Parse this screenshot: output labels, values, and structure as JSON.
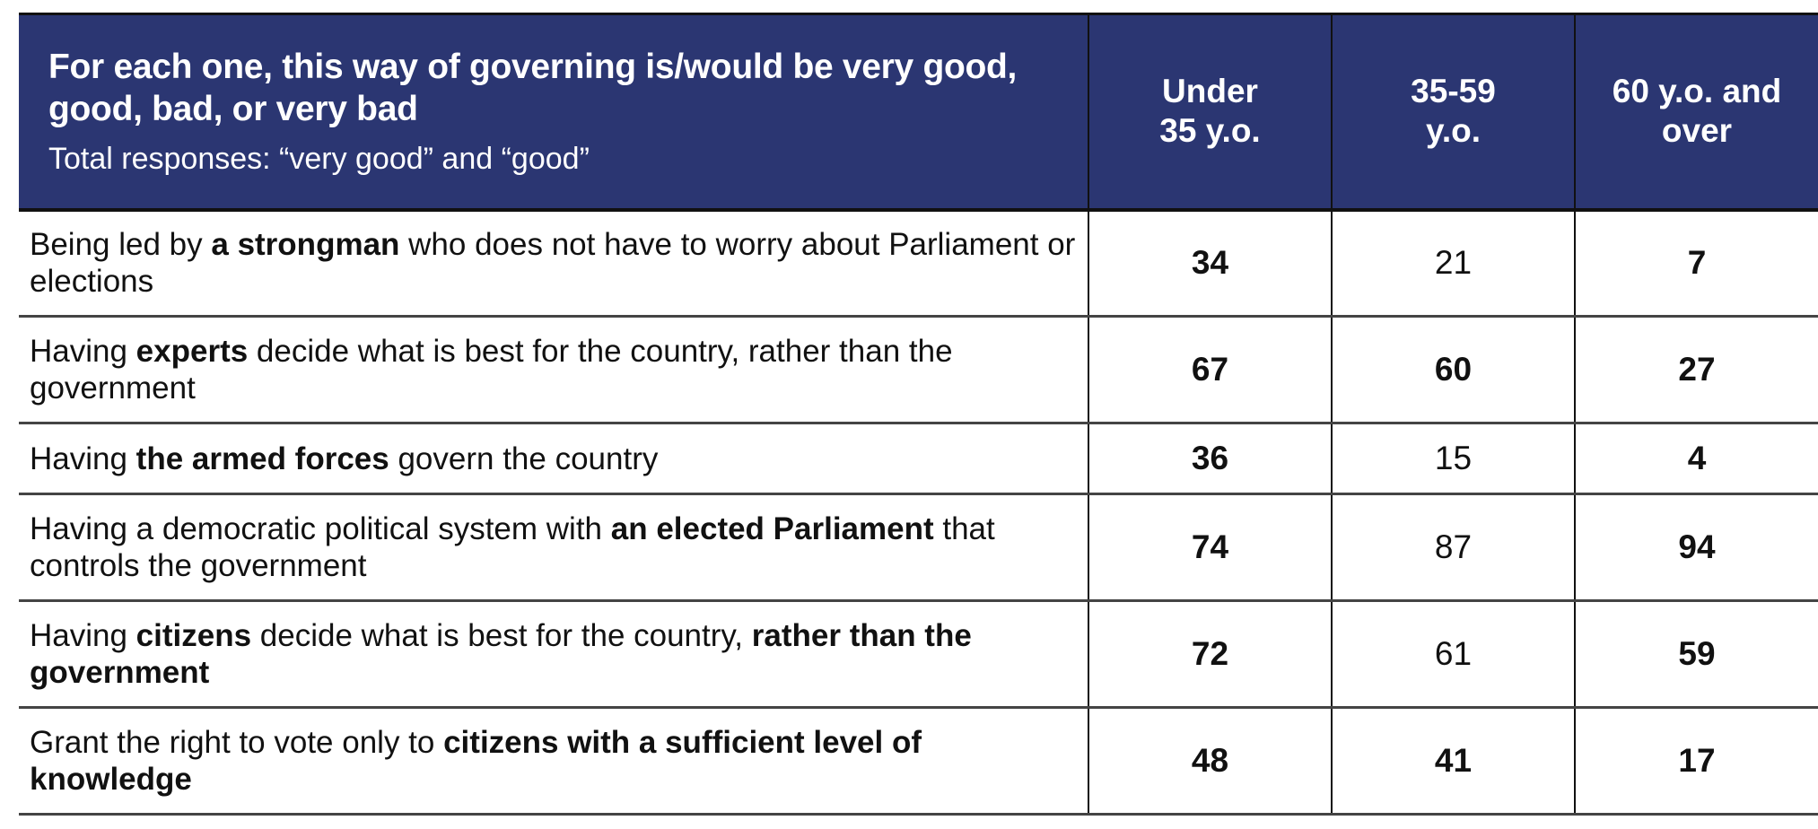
{
  "header": {
    "title": "For each one, this way of governing is/would be very good, good, bad, or very bad",
    "subtitle": "Total responses: “very good” and “good”",
    "columns": [
      "Under 35 y.o.",
      "35-59 y.o.",
      "60 y.o. and over"
    ]
  },
  "rows": [
    {
      "segments": [
        {
          "text": "Being led by ",
          "bold": false
        },
        {
          "text": "a strongman",
          "bold": true
        },
        {
          "text": " who does not have to worry about Parliament or elections",
          "bold": false
        }
      ],
      "values": [
        {
          "v": "34",
          "bold": true
        },
        {
          "v": "21",
          "bold": false
        },
        {
          "v": "7",
          "bold": true
        }
      ]
    },
    {
      "segments": [
        {
          "text": "Having ",
          "bold": false
        },
        {
          "text": "experts",
          "bold": true
        },
        {
          "text": " decide what is best for the country, rather than the government",
          "bold": false
        }
      ],
      "values": [
        {
          "v": "67",
          "bold": true
        },
        {
          "v": "60",
          "bold": true
        },
        {
          "v": "27",
          "bold": true
        }
      ]
    },
    {
      "segments": [
        {
          "text": "Having ",
          "bold": false
        },
        {
          "text": "the armed forces",
          "bold": true
        },
        {
          "text": " govern the country",
          "bold": false
        }
      ],
      "values": [
        {
          "v": "36",
          "bold": true
        },
        {
          "v": "15",
          "bold": false
        },
        {
          "v": "4",
          "bold": true
        }
      ]
    },
    {
      "segments": [
        {
          "text": "Having a democratic political system with ",
          "bold": false
        },
        {
          "text": "an elected Parliament",
          "bold": true
        },
        {
          "text": " that controls the government",
          "bold": false
        }
      ],
      "values": [
        {
          "v": "74",
          "bold": true
        },
        {
          "v": "87",
          "bold": false
        },
        {
          "v": "94",
          "bold": true
        }
      ]
    },
    {
      "segments": [
        {
          "text": "Having ",
          "bold": false
        },
        {
          "text": "citizens",
          "bold": true
        },
        {
          "text": " decide what is best for the country, ",
          "bold": false
        },
        {
          "text": "rather than the government",
          "bold": true
        }
      ],
      "values": [
        {
          "v": "72",
          "bold": true
        },
        {
          "v": "61",
          "bold": false
        },
        {
          "v": "59",
          "bold": true
        }
      ]
    },
    {
      "segments": [
        {
          "text": "Grant the right to vote only to ",
          "bold": false
        },
        {
          "text": "citizens with a sufficient level of knowledge",
          "bold": true
        }
      ],
      "values": [
        {
          "v": "48",
          "bold": true
        },
        {
          "v": "41",
          "bold": true
        },
        {
          "v": "17",
          "bold": true
        }
      ]
    }
  ],
  "colors": {
    "header_bg": "#2b3672",
    "header_text": "#ffffff"
  }
}
